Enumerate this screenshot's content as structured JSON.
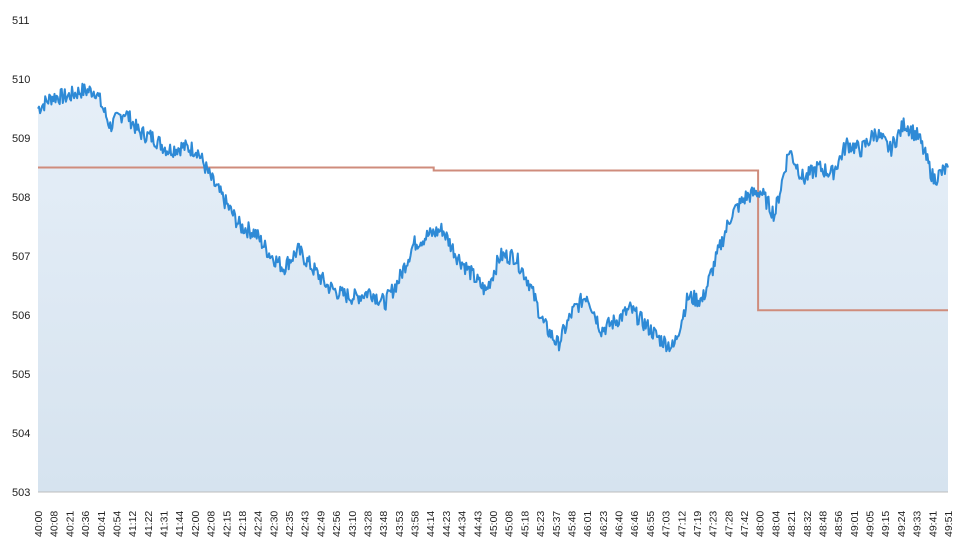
{
  "chart_data": {
    "type": "area",
    "title": "",
    "xlabel": "",
    "ylabel": "",
    "ylim": [
      503,
      511
    ],
    "grid": false,
    "legend": "none",
    "y_ticks": [
      "503",
      "504",
      "505",
      "506",
      "507",
      "508",
      "509",
      "510",
      "511"
    ],
    "x_ticks": [
      "40:00",
      "40:08",
      "40:21",
      "40:36",
      "40:41",
      "40:54",
      "41:12",
      "41:22",
      "41:31",
      "41:44",
      "42:00",
      "42:08",
      "42:15",
      "42:18",
      "42:24",
      "42:30",
      "42:35",
      "42:43",
      "42:49",
      "42:56",
      "43:10",
      "43:28",
      "43:48",
      "43:53",
      "43:58",
      "44:14",
      "44:23",
      "44:34",
      "44:43",
      "45:00",
      "45:08",
      "45:18",
      "45:23",
      "45:37",
      "45:48",
      "46:01",
      "46:23",
      "46:40",
      "46:46",
      "46:55",
      "47:03",
      "47:12",
      "47:19",
      "47:23",
      "47:28",
      "47:42",
      "48:00",
      "48:04",
      "48:21",
      "48:32",
      "48:48",
      "48:56",
      "49:01",
      "49:05",
      "49:15",
      "49:24",
      "49:33",
      "49:41",
      "49:51"
    ],
    "series": [
      {
        "color": "#2e8ad6",
        "fill": "#dde9f4",
        "x_range": [
          0,
          57.5
        ],
        "values": [
          509.5,
          509.7,
          509.7,
          509.8,
          509.8,
          509.2,
          509.45,
          509.1,
          509.0,
          508.8,
          508.85,
          508.8,
          508.3,
          507.9,
          507.5,
          507.4,
          507.05,
          506.8,
          507.1,
          506.8,
          506.5,
          506.35,
          506.3,
          506.4,
          506.2,
          506.6,
          507.2,
          507.35,
          507.45,
          507.0,
          506.7,
          506.4,
          507.0,
          507.0,
          506.55,
          505.85,
          505.5,
          506.05,
          506.35,
          505.75,
          505.9,
          506.1,
          505.85,
          505.6,
          505.45,
          506.3,
          506.25,
          507.0,
          507.7,
          508.0,
          508.1,
          507.7,
          508.8,
          508.3,
          508.5,
          508.4,
          508.9,
          508.8,
          509.1,
          508.8,
          509.25,
          509.0,
          508.3,
          508.5
        ]
      },
      {
        "color": "#cf8c7c",
        "values": [
          508.5,
          508.45,
          506.08
        ],
        "breaks": [
          25,
          45.5,
          57.5
        ]
      }
    ]
  }
}
